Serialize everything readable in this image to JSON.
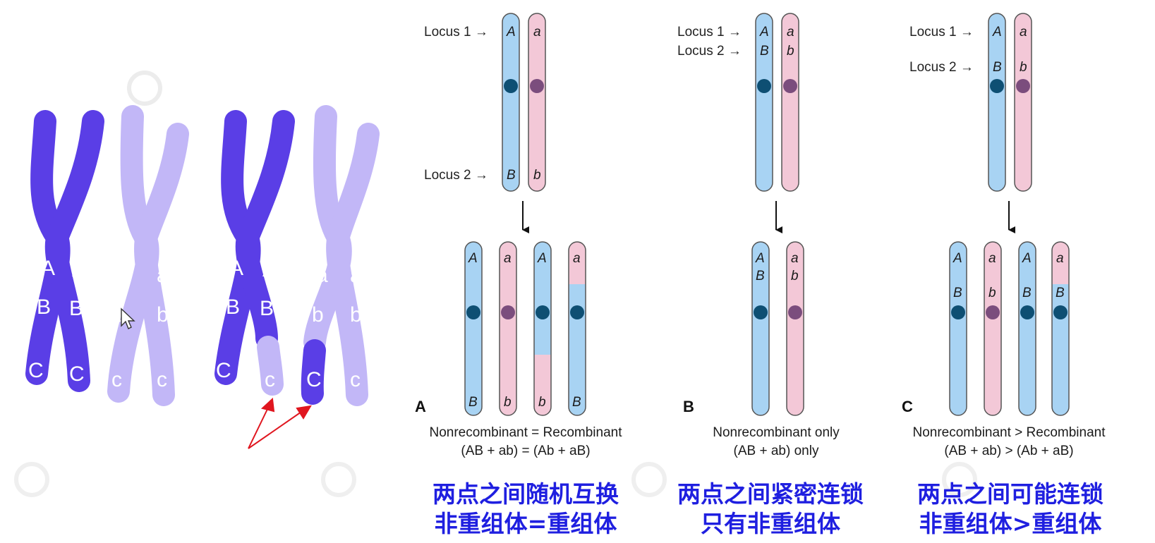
{
  "watermark": "",
  "left_diagram": {
    "pair1": {
      "dark_alleles": [
        "A",
        "B",
        "C",
        "A",
        "B",
        "C"
      ],
      "light_alleles": [
        "a",
        "b",
        "c",
        "a",
        "b",
        "c"
      ]
    },
    "pair2": {
      "dark_alleles": [
        "A",
        "B",
        "C",
        "A",
        "B",
        "c"
      ],
      "light_alleles": [
        "a",
        "b",
        "C",
        "a",
        "b",
        "c"
      ]
    }
  },
  "panels": [
    {
      "letter": "A",
      "loci": [
        "Locus 1 →",
        "Locus 2 →"
      ],
      "parent_alleles": [
        [
          "A",
          "B"
        ],
        [
          "a",
          "b"
        ]
      ],
      "offspring_alleles": [
        [
          "A",
          "B"
        ],
        [
          "a",
          "b"
        ],
        [
          "A",
          "b"
        ],
        [
          "a",
          "B"
        ]
      ],
      "caption_line1": "Nonrecombinant = Recombinant",
      "caption_line2": "(AB + ab) = (Ab + aB)",
      "cn_line1": "两点之间随机互换",
      "cn_line2": "非重组体=重组体"
    },
    {
      "letter": "B",
      "loci": [
        "Locus 1 →",
        "Locus 2 →"
      ],
      "parent_alleles": [
        [
          "A",
          "B"
        ],
        [
          "a",
          "b"
        ]
      ],
      "offspring_alleles": [
        [
          "A",
          "B"
        ],
        [
          "a",
          "b"
        ]
      ],
      "caption_line1": "Nonrecombinant only",
      "caption_line2": "(AB + ab) only",
      "cn_line1": "两点之间紧密连锁",
      "cn_line2": "只有非重组体"
    },
    {
      "letter": "C",
      "loci": [
        "Locus 1 →",
        "Locus 2 →"
      ],
      "parent_alleles": [
        [
          "A",
          "B"
        ],
        [
          "a",
          "b"
        ]
      ],
      "offspring_alleles": [
        [
          "A",
          "B"
        ],
        [
          "a",
          "b"
        ],
        [
          "A",
          "B"
        ],
        [
          "a",
          "B"
        ]
      ],
      "caption_line1": "Nonrecombinant > Recombinant",
      "caption_line2": "(AB + ab) > (Ab + aB)",
      "cn_line1": "两点之间可能连锁",
      "cn_line2": "非重组体>重组体"
    }
  ],
  "colors": {
    "dark_chromosome": "#5a3ee6",
    "light_chromosome": "#c2b7f7",
    "blue_chromatid": "#a8d3f3",
    "pink_chromatid": "#f3c8d7",
    "blue_centromere": "#0e4f73",
    "pink_centromere": "#7b4d7d",
    "arrow_red": "#e0161f",
    "chinese_text": "#1f1fe0"
  },
  "icons": [
    "cursor-icon",
    "down-arrow-icon",
    "red-pointer-arrow-icon"
  ]
}
